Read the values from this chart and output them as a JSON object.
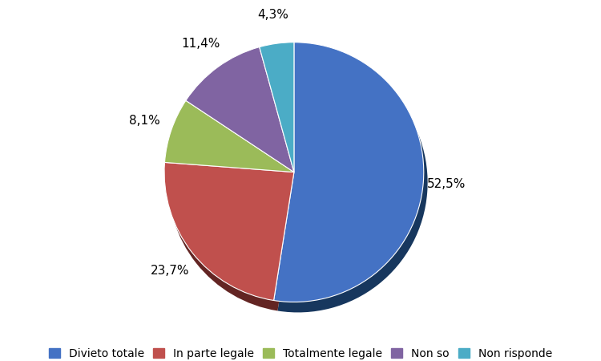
{
  "labels": [
    "Divieto totale",
    "In parte legale",
    "Totalmente legale",
    "Non so",
    "Non risponde"
  ],
  "values": [
    52.5,
    23.7,
    8.1,
    11.4,
    4.3
  ],
  "colors": [
    "#4472C4",
    "#C0504D",
    "#9BBB59",
    "#8064A2",
    "#4BACC6"
  ],
  "dark_colors": [
    "#17375E",
    "#632523",
    "#4F6228",
    "#3F3151",
    "#17375E"
  ],
  "startangle": 90,
  "label_fontsize": 11,
  "legend_fontsize": 10,
  "pct_labels": [
    "52,5%",
    "23,7%",
    "8,1%",
    "11,4%",
    "4,3%"
  ],
  "label_radii": [
    1.18,
    1.22,
    1.22,
    1.22,
    1.22
  ]
}
